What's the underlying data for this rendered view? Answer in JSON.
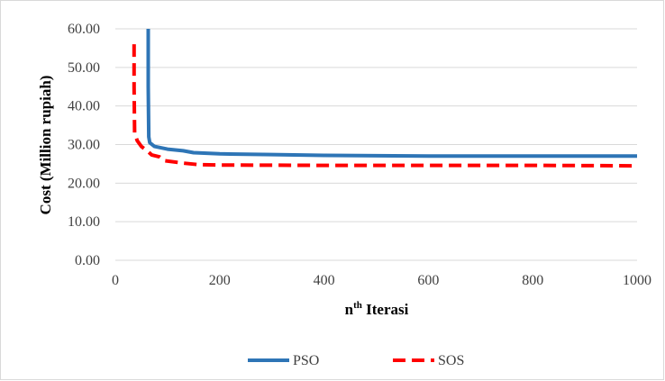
{
  "chart_data": {
    "type": "line",
    "xlabel_main": "n",
    "xlabel_sup": "th",
    "xlabel_rest": " Iterasi",
    "ylabel": "Cost (Million rupiah)",
    "xlim": [
      0,
      1000
    ],
    "ylim": [
      0,
      60
    ],
    "x_ticks": [
      "0",
      "200",
      "400",
      "600",
      "800",
      "1000"
    ],
    "y_ticks": [
      "0.00",
      "10.00",
      "20.00",
      "30.00",
      "40.00",
      "50.00",
      "60.00"
    ],
    "x_tick_values": [
      0,
      200,
      400,
      600,
      800,
      1000
    ],
    "y_tick_values": [
      0,
      10,
      20,
      30,
      40,
      50,
      60
    ],
    "grid": "horizontal",
    "legend_position": "bottom",
    "series": [
      {
        "name": "PSO",
        "color": "#2E75B6",
        "dash": "solid",
        "points": [
          [
            63,
            60
          ],
          [
            63,
            45
          ],
          [
            64,
            32
          ],
          [
            66,
            30.5
          ],
          [
            75,
            29.5
          ],
          [
            100,
            28.8
          ],
          [
            130,
            28.4
          ],
          [
            150,
            27.9
          ],
          [
            200,
            27.6
          ],
          [
            300,
            27.4
          ],
          [
            400,
            27.2
          ],
          [
            500,
            27.1
          ],
          [
            600,
            27.0
          ],
          [
            800,
            27.0
          ],
          [
            1000,
            27.0
          ]
        ]
      },
      {
        "name": "SOS",
        "color": "#FF0000",
        "dash": "dashed",
        "points": [
          [
            36,
            56
          ],
          [
            36,
            45
          ],
          [
            37,
            33
          ],
          [
            42,
            31
          ],
          [
            50,
            29.5
          ],
          [
            60,
            28.5
          ],
          [
            70,
            27.3
          ],
          [
            85,
            26.8
          ],
          [
            95,
            25.8
          ],
          [
            130,
            25.2
          ],
          [
            160,
            24.8
          ],
          [
            200,
            24.7
          ],
          [
            400,
            24.6
          ],
          [
            600,
            24.6
          ],
          [
            800,
            24.6
          ],
          [
            1000,
            24.5
          ]
        ]
      }
    ]
  }
}
